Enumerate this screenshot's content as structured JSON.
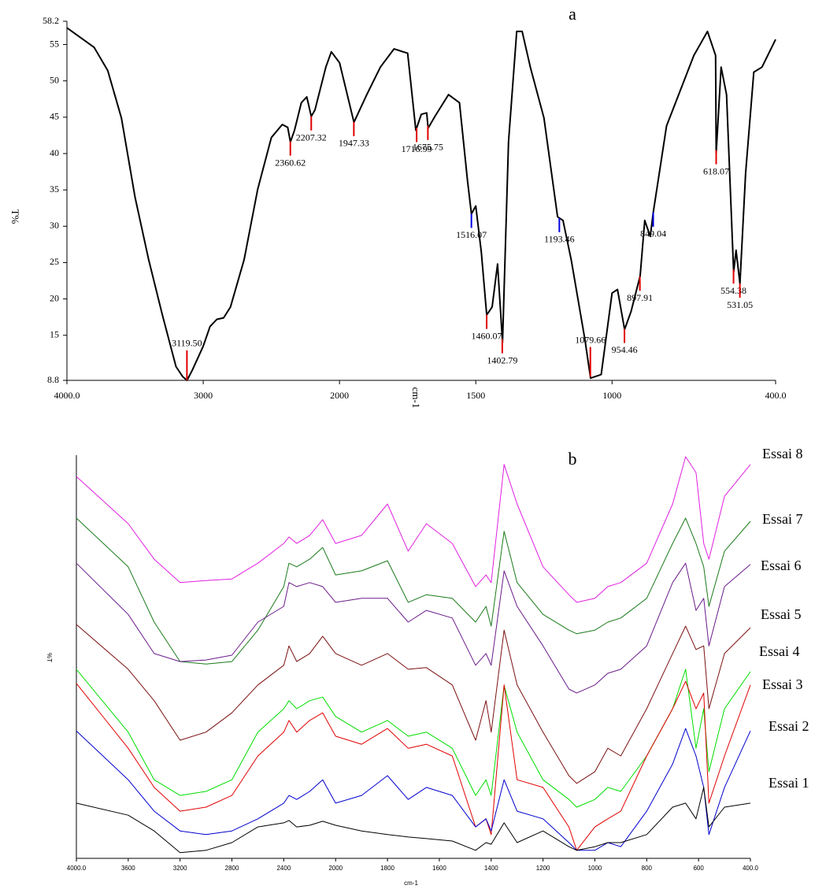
{
  "chart_data": [
    {
      "type": "line",
      "title": "a",
      "ylabel": "T%",
      "xlabel": "cm-1",
      "color": "#000000",
      "xlim": [
        4000,
        400
      ],
      "ylim": [
        8.8,
        58.2
      ],
      "x_break": 2000,
      "x_break_factor": 2,
      "xticks": [
        {
          "value": 4000,
          "label": "4000.0"
        },
        3000,
        2000,
        1500,
        1000,
        {
          "value": 400,
          "label": "400.0"
        }
      ],
      "yticks": [
        8.8,
        15,
        20,
        25,
        30,
        35,
        40,
        45,
        50,
        55,
        58.2
      ],
      "x": [
        4000,
        3800,
        3700,
        3600,
        3500,
        3400,
        3300,
        3200,
        3150,
        3119,
        3080,
        3000,
        2950,
        2900,
        2850,
        2800,
        2700,
        2600,
        2500,
        2420,
        2380,
        2360,
        2330,
        2280,
        2240,
        2207,
        2180,
        2100,
        2060,
        2000,
        1947,
        1900,
        1850,
        1800,
        1750,
        1720,
        1700,
        1680,
        1675,
        1650,
        1600,
        1560,
        1530,
        1516,
        1500,
        1480,
        1460,
        1440,
        1420,
        1402,
        1380,
        1350,
        1330,
        1300,
        1250,
        1200,
        1180,
        1150,
        1100,
        1079,
        1040,
        1000,
        980,
        954,
        930,
        897,
        880,
        860,
        849,
        800,
        700,
        650,
        620,
        618,
        600,
        580,
        554,
        545,
        531,
        510,
        480,
        450,
        400
      ],
      "values": [
        57.3,
        54.6,
        51.4,
        44.9,
        34.0,
        25.4,
        17.8,
        10.7,
        9.3,
        8.8,
        10.2,
        13.5,
        16.2,
        17.2,
        17.4,
        18.9,
        25.4,
        35.1,
        42.2,
        44.0,
        43.6,
        41.6,
        43.2,
        47.0,
        47.8,
        45.1,
        46.0,
        51.9,
        54.0,
        52.5,
        44.3,
        48.1,
        51.9,
        54.4,
        53.8,
        43.2,
        45.4,
        45.6,
        43.5,
        45.1,
        48.1,
        47.0,
        36.2,
        31.7,
        32.8,
        26.5,
        17.8,
        18.9,
        24.8,
        14.0,
        41.6,
        56.8,
        56.8,
        51.9,
        44.9,
        31.3,
        30.8,
        25.4,
        14.5,
        9.1,
        9.6,
        20.8,
        21.3,
        15.8,
        18.3,
        23.2,
        30.8,
        28.6,
        31.9,
        43.8,
        53.5,
        56.8,
        53.5,
        40.0,
        51.9,
        48.1,
        23.7,
        26.7,
        22.1,
        37.3,
        51.2,
        51.9,
        55.7
      ],
      "peaks": [
        {
          "x": 3119.5,
          "label": "3119.50",
          "color": "#e00000"
        },
        {
          "x": 2360.62,
          "label": "2360.62",
          "color": "#e00000"
        },
        {
          "x": 2207.32,
          "label": "2207.32",
          "color": "#e00000"
        },
        {
          "x": 1947.33,
          "label": "1947.33",
          "color": "#e00000"
        },
        {
          "x": 1716.99,
          "label": "1716.99",
          "color": "#e00000"
        },
        {
          "x": 1675.75,
          "label": "1675.75",
          "color": "#e00000"
        },
        {
          "x": 1516.07,
          "label": "1516.07",
          "color": "#0000e0"
        },
        {
          "x": 1460.07,
          "label": "1460.07",
          "color": "#e00000"
        },
        {
          "x": 1402.79,
          "label": "1402.79",
          "color": "#e00000"
        },
        {
          "x": 1193.46,
          "label": "1193.46",
          "color": "#0000e0"
        },
        {
          "x": 1079.66,
          "label": "1079.66",
          "color": "#e00000"
        },
        {
          "x": 954.46,
          "label": "954.46",
          "color": "#e00000"
        },
        {
          "x": 897.91,
          "label": "897.91",
          "color": "#e00000"
        },
        {
          "x": 849.04,
          "label": "849.04",
          "color": "#0000e0"
        },
        {
          "x": 618.07,
          "label": "618.07",
          "color": "#e00000"
        },
        {
          "x": 554.38,
          "label": "554.38",
          "color": "#e00000"
        },
        {
          "x": 531.05,
          "label": "531.05",
          "color": "#e00000"
        }
      ]
    },
    {
      "type": "line",
      "title": "b",
      "ylabel": "%T",
      "xlabel": "cm-1",
      "xlim": [
        4000,
        400
      ],
      "ylim": [
        0,
        100
      ],
      "x_break": 2000,
      "x_break_factor": 2,
      "xticks": [
        {
          "value": 4000,
          "label": "4000.0"
        },
        3600,
        3200,
        2800,
        2400,
        2000,
        1800,
        1600,
        1400,
        1200,
        1000,
        800,
        600,
        {
          "value": 400,
          "label": "400.0"
        }
      ],
      "x": [
        4000,
        3600,
        3400,
        3200,
        3000,
        2800,
        2600,
        2400,
        2360,
        2300,
        2200,
        2100,
        2000,
        1900,
        1800,
        1720,
        1650,
        1550,
        1460,
        1420,
        1400,
        1350,
        1300,
        1200,
        1100,
        1070,
        1000,
        950,
        900,
        800,
        700,
        650,
        610,
        580,
        560,
        500,
        400
      ],
      "series": [
        {
          "name": "Essai 8",
          "color": "#e020e0",
          "values": [
            94.7,
            83.0,
            74.2,
            68.4,
            68.9,
            69.3,
            73.2,
            78.1,
            79.7,
            78.1,
            80.1,
            84.0,
            78.1,
            80.1,
            87.9,
            76.2,
            83.0,
            78.1,
            67.4,
            70.3,
            68.4,
            97.7,
            87.9,
            72.3,
            65.4,
            63.5,
            64.5,
            67.4,
            68.4,
            73.2,
            87.9,
            99.6,
            95.7,
            78.1,
            74.2,
            89.8,
            97.7
          ]
        },
        {
          "name": "Essai 7",
          "color": "#1a7a1a",
          "values": [
            84.4,
            72.3,
            58.6,
            48.8,
            48.2,
            48.8,
            56.6,
            67.4,
            73.2,
            72.3,
            74.2,
            77.1,
            70.3,
            71.3,
            73.8,
            63.5,
            65.4,
            64.5,
            58.6,
            62.5,
            57.6,
            81.1,
            68.4,
            60.5,
            56.6,
            55.7,
            56.6,
            58.6,
            59.6,
            64.5,
            78.1,
            84.4,
            78.1,
            72.3,
            62.5,
            76.2,
            83.6
          ]
        },
        {
          "name": "Essai 6",
          "color": "#6a1b8a",
          "values": [
            73.2,
            60.5,
            50.8,
            48.8,
            49.2,
            50.4,
            58.6,
            62.5,
            68.4,
            67.4,
            68.4,
            67.4,
            63.5,
            64.5,
            64.5,
            58.6,
            61.5,
            59.6,
            47.9,
            50.8,
            47.9,
            71.3,
            62.5,
            52.7,
            42.0,
            41.0,
            43.0,
            45.9,
            46.9,
            52.7,
            68.4,
            73.2,
            61.5,
            64.5,
            52.7,
            67.4,
            72.9
          ]
        },
        {
          "name": "Essai 5",
          "color": "#7b1010",
          "values": [
            58.0,
            46.9,
            39.1,
            29.3,
            31.3,
            36.1,
            43.0,
            47.9,
            52.7,
            48.8,
            50.8,
            55.1,
            50.8,
            47.9,
            50.8,
            46.9,
            47.3,
            43.0,
            29.3,
            39.1,
            31.3,
            56.6,
            43.0,
            31.3,
            20.5,
            18.6,
            21.5,
            27.3,
            25.4,
            37.1,
            50.8,
            57.6,
            51.8,
            52.7,
            37.1,
            50.8,
            57.2
          ]
        },
        {
          "name": "Essai 4",
          "color": "#00dd00",
          "values": [
            46.9,
            31.3,
            19.5,
            15.6,
            16.6,
            19.5,
            31.3,
            37.1,
            39.1,
            37.1,
            39.1,
            40.0,
            35.2,
            31.3,
            34.2,
            30.3,
            31.3,
            27.3,
            15.6,
            19.5,
            15.6,
            42.9,
            31.3,
            19.5,
            14.6,
            12.7,
            14.6,
            17.6,
            16.6,
            25.4,
            37.1,
            46.9,
            27.3,
            37.1,
            21.5,
            37.1,
            46.3
          ]
        },
        {
          "name": "Essai 3",
          "color": "#e00000",
          "values": [
            43.4,
            27.3,
            17.6,
            11.7,
            12.7,
            15.6,
            25.4,
            31.3,
            34.2,
            31.3,
            34.2,
            36.1,
            30.3,
            28.3,
            32.2,
            27.3,
            28.3,
            25.4,
            7.8,
            9.8,
            5.9,
            43.0,
            19.5,
            17.6,
            7.8,
            2.0,
            7.8,
            9.8,
            11.7,
            25.4,
            37.1,
            43.9,
            37.1,
            41.0,
            13.7,
            25.4,
            43.0
          ]
        },
        {
          "name": "Essai 2",
          "color": "#0000cc",
          "values": [
            31.6,
            19.5,
            11.7,
            6.8,
            5.9,
            6.8,
            9.8,
            13.7,
            15.6,
            14.6,
            16.6,
            19.5,
            13.7,
            15.6,
            20.5,
            14.6,
            17.6,
            15.6,
            7.8,
            9.8,
            6.8,
            19.5,
            11.7,
            9.8,
            3.9,
            2.0,
            2.0,
            3.9,
            2.9,
            11.7,
            23.4,
            32.2,
            25.4,
            17.6,
            5.9,
            17.6,
            31.6
          ]
        },
        {
          "name": "Essai 1",
          "color": "#000000",
          "values": [
            13.7,
            10.7,
            6.8,
            1.4,
            2.0,
            3.9,
            7.8,
            8.8,
            9.4,
            7.8,
            8.2,
            9.2,
            8.2,
            6.8,
            5.9,
            5.3,
            4.9,
            4.3,
            2.0,
            3.9,
            3.5,
            8.8,
            3.9,
            6.8,
            2.9,
            2.0,
            2.9,
            3.9,
            3.9,
            5.9,
            12.7,
            13.7,
            9.8,
            17.6,
            7.8,
            12.7,
            13.7
          ]
        }
      ]
    }
  ]
}
